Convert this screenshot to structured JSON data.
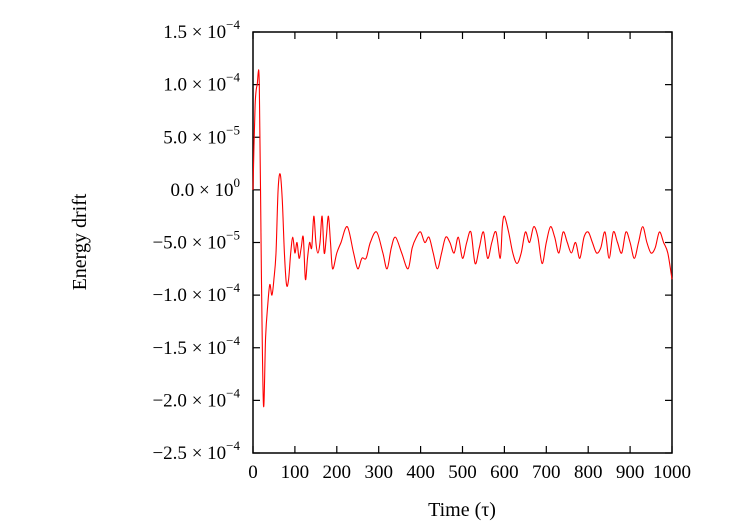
{
  "chart_data": {
    "type": "line",
    "xlabel": "Time (τ)",
    "ylabel": "Energy drift",
    "xlim": [
      0,
      1000
    ],
    "ylim": [
      -0.00025,
      0.00015
    ],
    "grid": false,
    "x_ticks": [
      "0",
      "100",
      "200",
      "300",
      "400",
      "500",
      "600",
      "700",
      "800",
      "900",
      "1000"
    ],
    "y_ticks": [
      {
        "mantissa": "1.5",
        "exponent": "−4"
      },
      {
        "mantissa": "1.0",
        "exponent": "−4"
      },
      {
        "mantissa": "5.0",
        "exponent": "−5"
      },
      {
        "mantissa": "0.0",
        "exponent": "0"
      },
      {
        "mantissa": "−5.0",
        "exponent": "−5"
      },
      {
        "mantissa": "−1.0",
        "exponent": "−4"
      },
      {
        "mantissa": "−1.5",
        "exponent": "−4"
      },
      {
        "mantissa": "−2.0",
        "exponent": "−4"
      },
      {
        "mantissa": "−2.5",
        "exponent": "−4"
      }
    ],
    "series": [
      {
        "color": "#ff0000",
        "x": [
          0,
          5,
          10,
          15,
          20,
          25,
          30,
          35,
          40,
          45,
          50,
          55,
          60,
          65,
          70,
          75,
          80,
          85,
          90,
          95,
          100,
          105,
          110,
          115,
          120,
          125,
          130,
          135,
          140,
          145,
          150,
          155,
          160,
          165,
          170,
          175,
          180,
          185,
          190,
          200,
          210,
          225,
          240,
          250,
          260,
          270,
          280,
          295,
          310,
          320,
          330,
          340,
          355,
          370,
          380,
          390,
          400,
          410,
          420,
          430,
          440,
          450,
          460,
          470,
          480,
          490,
          500,
          510,
          520,
          530,
          540,
          550,
          560,
          570,
          580,
          590,
          595,
          600,
          610,
          620,
          630,
          640,
          650,
          660,
          670,
          680,
          690,
          700,
          710,
          720,
          730,
          740,
          750,
          760,
          770,
          780,
          790,
          800,
          810,
          820,
          830,
          840,
          850,
          860,
          870,
          880,
          890,
          900,
          910,
          920,
          930,
          940,
          950,
          960,
          970,
          980,
          990,
          1000
        ],
        "y": [
          0.0,
          8e-05,
          0.0001,
          0.0001,
          -8e-05,
          -0.000205,
          -0.00014,
          -0.00011,
          -9e-05,
          -0.0001,
          -8.5e-05,
          -6e-05,
          0.0,
          1.5e-05,
          -1e-05,
          -6e-05,
          -9e-05,
          -8.5e-05,
          -6e-05,
          -4.5e-05,
          -6e-05,
          -5e-05,
          -6.5e-05,
          -5.5e-05,
          -4.5e-05,
          -8.5e-05,
          -6.5e-05,
          -5e-05,
          -5.5e-05,
          -2.5e-05,
          -5e-05,
          -6e-05,
          -5e-05,
          -2.5e-05,
          -6e-05,
          -4.5e-05,
          -2.5e-05,
          -5e-05,
          -7.5e-05,
          -6e-05,
          -5e-05,
          -3.5e-05,
          -6e-05,
          -7.5e-05,
          -6.5e-05,
          -6.5e-05,
          -5e-05,
          -4e-05,
          -6e-05,
          -7.5e-05,
          -5.5e-05,
          -4.5e-05,
          -6e-05,
          -7.5e-05,
          -5.5e-05,
          -4.5e-05,
          -4e-05,
          -5e-05,
          -4.5e-05,
          -6e-05,
          -7.5e-05,
          -6e-05,
          -4.5e-05,
          -5e-05,
          -6e-05,
          -4.5e-05,
          -6.5e-05,
          -5e-05,
          -4e-05,
          -7e-05,
          -5.5e-05,
          -4e-05,
          -6.5e-05,
          -5e-05,
          -4e-05,
          -6.5e-05,
          -3.5e-05,
          -2.5e-05,
          -4e-05,
          -6e-05,
          -7e-05,
          -6e-05,
          -4e-05,
          -5e-05,
          -3.5e-05,
          -4.5e-05,
          -7e-05,
          -5e-05,
          -3.5e-05,
          -4.5e-05,
          -6e-05,
          -4e-05,
          -5e-05,
          -6e-05,
          -5e-05,
          -6.5e-05,
          -4.5e-05,
          -4e-05,
          -5e-05,
          -6e-05,
          -5.5e-05,
          -4e-05,
          -6.5e-05,
          -4e-05,
          -5e-05,
          -6e-05,
          -4e-05,
          -5e-05,
          -6.5e-05,
          -5e-05,
          -3.5e-05,
          -5e-05,
          -6e-05,
          -5.5e-05,
          -4e-05,
          -5e-05,
          -6e-05,
          -8.5e-05
        ]
      }
    ]
  }
}
